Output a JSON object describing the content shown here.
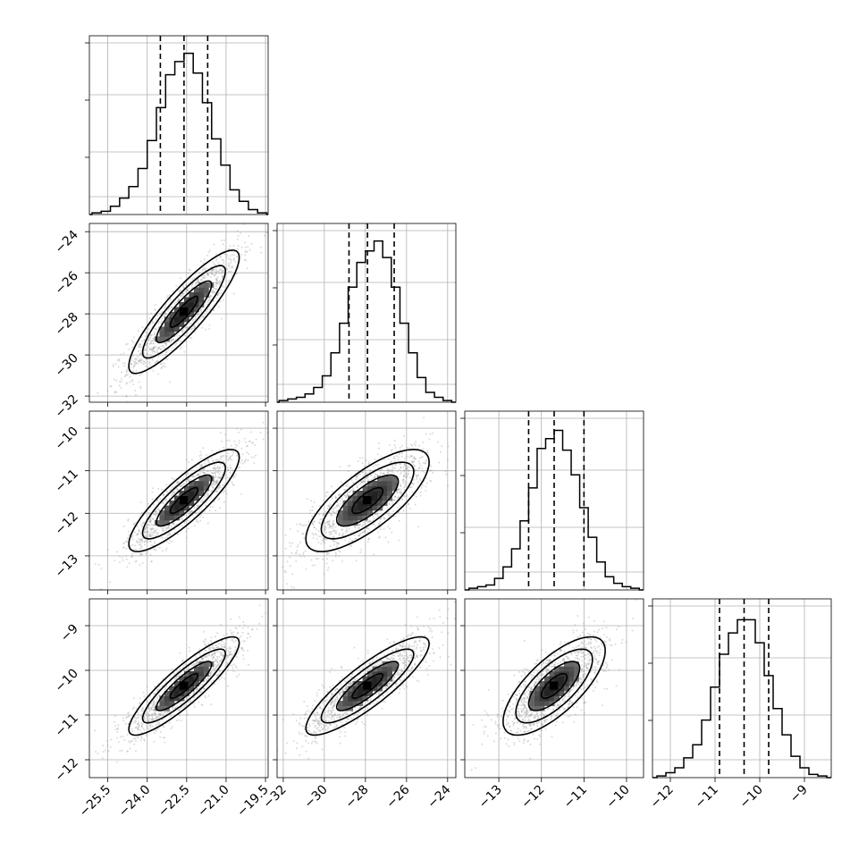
{
  "chart_data": {
    "type": "corner",
    "title": "",
    "parameters": [
      {
        "name": "",
        "median": -22.6,
        "q16": -23.5,
        "q84": -21.7,
        "range": [
          -26.2,
          -19.4
        ],
        "ticks": [
          -25.5,
          -24.0,
          -22.5,
          -21.0,
          -19.5
        ],
        "tick_labels": [
          "−25.5",
          "−24.0",
          "−22.5",
          "−21.0",
          "−19.5"
        ]
      },
      {
        "name": "",
        "median": -27.9,
        "q16": -28.8,
        "q84": -26.6,
        "range": [
          -32.3,
          -23.6
        ],
        "ticks": [
          -32,
          -30,
          -28,
          -26,
          -24
        ],
        "tick_labels": [
          "−32",
          "−30",
          "−28",
          "−26",
          "−24"
        ]
      },
      {
        "name": "",
        "median": -11.7,
        "q16": -12.3,
        "q84": -11.0,
        "range": [
          -13.8,
          -9.6
        ],
        "ticks": [
          -13,
          -12,
          -11,
          -10
        ],
        "tick_labels": [
          "−13",
          "−12",
          "−11",
          "−10"
        ]
      },
      {
        "name": "",
        "median": -10.35,
        "q16": -10.9,
        "q84": -9.8,
        "range": [
          -12.4,
          -8.4
        ],
        "ticks": [
          -12,
          -11,
          -10,
          -9
        ],
        "tick_labels": [
          "−12",
          "−11",
          "−10",
          "−9"
        ]
      }
    ],
    "row_tick_labels": {
      "1": {
        "ticks": [
          -32,
          -30,
          -28,
          -26,
          -24
        ],
        "tick_labels": [
          "−32",
          "−30",
          "−28",
          "−26",
          "−24"
        ]
      },
      "2": {
        "ticks": [
          -13,
          -12,
          -11,
          -10
        ],
        "tick_labels": [
          "−13",
          "−12",
          "−11",
          "−10"
        ]
      },
      "3": {
        "ticks": [
          -12,
          -11,
          -10,
          -9
        ],
        "tick_labels": [
          "−12",
          "−11",
          "−10",
          "−9"
        ]
      }
    },
    "histograms": [
      {
        "param": 0,
        "bin_edges": [
          -26.1,
          -25.75,
          -25.4,
          -25.05,
          -24.7,
          -24.35,
          -24.0,
          -23.65,
          -23.3,
          -22.95,
          -22.6,
          -22.25,
          -21.9,
          -21.55,
          -21.2,
          -20.85,
          -20.5,
          -20.15,
          -19.8,
          -19.45
        ],
        "counts": [
          0.01,
          0.02,
          0.05,
          0.1,
          0.17,
          0.28,
          0.45,
          0.65,
          0.85,
          0.93,
          0.98,
          0.86,
          0.68,
          0.46,
          0.3,
          0.15,
          0.08,
          0.03,
          0.01
        ]
      },
      {
        "param": 1,
        "bin_edges": [
          -32.2,
          -31.78,
          -31.36,
          -30.94,
          -30.52,
          -30.1,
          -29.68,
          -29.26,
          -28.84,
          -28.42,
          -28.0,
          -27.58,
          -27.16,
          -26.74,
          -26.32,
          -25.9,
          -25.48,
          -25.06,
          -24.64,
          -24.22,
          -23.8
        ],
        "counts": [
          0.01,
          0.02,
          0.03,
          0.05,
          0.09,
          0.16,
          0.3,
          0.48,
          0.7,
          0.85,
          0.92,
          0.98,
          0.88,
          0.7,
          0.48,
          0.3,
          0.15,
          0.06,
          0.03,
          0.01
        ]
      },
      {
        "param": 2,
        "bin_edges": [
          -13.7,
          -13.5,
          -13.3,
          -13.1,
          -12.9,
          -12.7,
          -12.5,
          -12.3,
          -12.1,
          -11.9,
          -11.7,
          -11.5,
          -11.3,
          -11.1,
          -10.9,
          -10.7,
          -10.5,
          -10.3,
          -10.1,
          -9.9,
          -9.7
        ],
        "counts": [
          0.01,
          0.02,
          0.03,
          0.07,
          0.14,
          0.25,
          0.42,
          0.62,
          0.86,
          0.92,
          0.97,
          0.85,
          0.7,
          0.5,
          0.32,
          0.17,
          0.08,
          0.04,
          0.02,
          0.01
        ]
      },
      {
        "param": 3,
        "bin_edges": [
          -12.3,
          -12.1,
          -11.9,
          -11.7,
          -11.5,
          -11.3,
          -11.1,
          -10.9,
          -10.7,
          -10.5,
          -10.3,
          -10.1,
          -9.9,
          -9.7,
          -9.5,
          -9.3,
          -9.1,
          -8.9,
          -8.7,
          -8.5
        ],
        "counts": [
          0.01,
          0.03,
          0.06,
          0.12,
          0.2,
          0.35,
          0.55,
          0.75,
          0.88,
          0.96,
          0.96,
          0.82,
          0.62,
          0.42,
          0.26,
          0.13,
          0.06,
          0.02,
          0.01
        ]
      }
    ],
    "pairs": [
      {
        "row": 1,
        "col": 0,
        "mean": [
          -22.6,
          -27.9
        ],
        "sd": [
          1.05,
          1.5
        ],
        "rho": 0.88
      },
      {
        "row": 2,
        "col": 0,
        "mean": [
          -22.6,
          -11.7
        ],
        "sd": [
          1.05,
          0.6
        ],
        "rho": 0.85
      },
      {
        "row": 2,
        "col": 1,
        "mean": [
          -27.9,
          -11.7
        ],
        "sd": [
          1.5,
          0.6
        ],
        "rho": 0.75
      },
      {
        "row": 3,
        "col": 0,
        "mean": [
          -22.6,
          -10.35
        ],
        "sd": [
          1.05,
          0.55
        ],
        "rho": 0.88
      },
      {
        "row": 3,
        "col": 1,
        "mean": [
          -27.9,
          -10.35
        ],
        "sd": [
          1.5,
          0.55
        ],
        "rho": 0.86
      },
      {
        "row": 3,
        "col": 2,
        "mean": [
          -11.7,
          -10.35
        ],
        "sd": [
          0.6,
          0.55
        ],
        "rho": 0.72
      }
    ],
    "contour_levels_sigma": [
      0.5,
      1.0,
      1.5,
      2.0
    ],
    "quantiles": [
      0.16,
      0.5,
      0.84
    ],
    "grid": true,
    "colors": {
      "axes": "#000000",
      "grid": "#b0b0b0",
      "scatter": "#888888",
      "density": "#000000"
    }
  }
}
